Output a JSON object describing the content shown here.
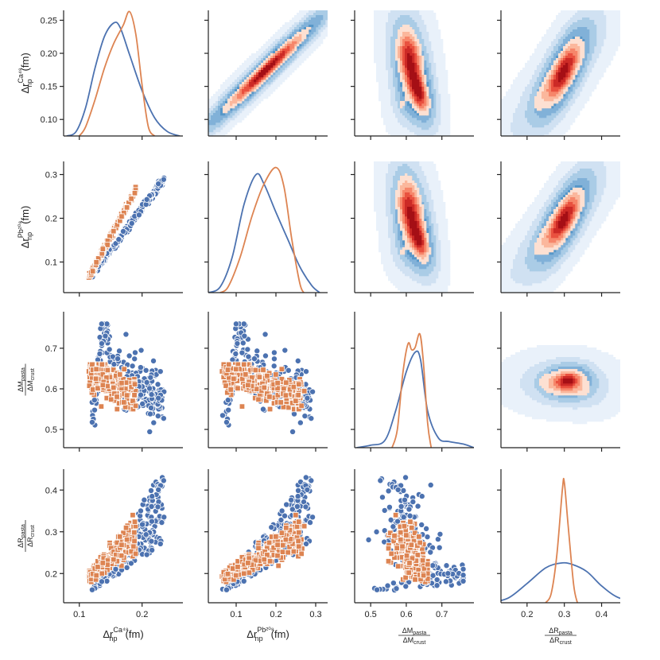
{
  "chart_data": {
    "type": "pairplot",
    "variables": [
      {
        "key": "dr_ca48",
        "label_main": "Δr",
        "label_sub": "np",
        "label_sup": "Ca⁴⁸",
        "unit": "(fm)",
        "ticks": [
          0.1,
          0.15,
          0.2,
          0.25
        ],
        "tick_labels": [
          "0.10",
          "0.15",
          "0.20",
          "0.25"
        ],
        "bottom_ticks": [
          0.1,
          0.2
        ],
        "bottom_tick_labels": [
          "0.1",
          "0.2"
        ],
        "range": [
          0.075,
          0.265
        ]
      },
      {
        "key": "dr_pb208",
        "label_main": "Δr",
        "label_sub": "np",
        "label_sup": "Pb²⁰⁸",
        "unit": "(fm)",
        "ticks": [
          0.1,
          0.2,
          0.3
        ],
        "tick_labels": [
          "0.1",
          "0.2",
          "0.3"
        ],
        "bottom_ticks": [
          0.1,
          0.2,
          0.3
        ],
        "bottom_tick_labels": [
          "0.1",
          "0.2",
          "0.3"
        ],
        "range": [
          0.03,
          0.33
        ]
      },
      {
        "key": "dm_ratio",
        "label_num": "ΔM",
        "label_num_sub": "pasta",
        "label_den": "ΔM",
        "label_den_sub": "crust",
        "ticks": [
          0.5,
          0.6,
          0.7
        ],
        "tick_labels": [
          "0.5",
          "0.6",
          "0.7"
        ],
        "bottom_ticks": [
          0.5,
          0.6,
          0.7
        ],
        "bottom_tick_labels": [
          "0.5",
          "0.6",
          "0.7"
        ],
        "range": [
          0.455,
          0.79
        ]
      },
      {
        "key": "dr_ratio",
        "label_num": "ΔR",
        "label_num_sub": "pasta",
        "label_den": "ΔR",
        "label_den_sub": "crust",
        "ticks": [
          0.2,
          0.3,
          0.4
        ],
        "tick_labels": [
          "0.2",
          "0.3",
          "0.4"
        ],
        "bottom_ticks": [
          0.2,
          0.3,
          0.4
        ],
        "bottom_tick_labels": [
          "0.2",
          "0.3",
          "0.4"
        ],
        "range": [
          0.13,
          0.45
        ]
      }
    ],
    "series": [
      {
        "marker": "circle",
        "color": "#4c72b0"
      },
      {
        "marker": "square",
        "color": "#dd8452"
      }
    ],
    "diagonal_kde": [
      {
        "var": "dr_ca48",
        "ylim": [
          0,
          1
        ],
        "blue": [
          [
            0.08,
            0.0
          ],
          [
            0.095,
            0.04
          ],
          [
            0.11,
            0.25
          ],
          [
            0.125,
            0.6
          ],
          [
            0.14,
            0.88
          ],
          [
            0.155,
            1.0
          ],
          [
            0.165,
            0.96
          ],
          [
            0.18,
            0.72
          ],
          [
            0.2,
            0.4
          ],
          [
            0.22,
            0.16
          ],
          [
            0.24,
            0.04
          ],
          [
            0.26,
            0.0
          ]
        ],
        "orange": [
          [
            0.1,
            0.0
          ],
          [
            0.11,
            0.08
          ],
          [
            0.125,
            0.32
          ],
          [
            0.14,
            0.6
          ],
          [
            0.155,
            0.82
          ],
          [
            0.17,
            0.98
          ],
          [
            0.18,
            1.1
          ],
          [
            0.19,
            0.9
          ],
          [
            0.2,
            0.45
          ],
          [
            0.21,
            0.08
          ],
          [
            0.22,
            0.0
          ]
        ]
      },
      {
        "var": "dr_pb208",
        "ylim": [
          0,
          1
        ],
        "blue": [
          [
            0.03,
            0.0
          ],
          [
            0.06,
            0.05
          ],
          [
            0.09,
            0.3
          ],
          [
            0.12,
            0.75
          ],
          [
            0.15,
            1.0
          ],
          [
            0.17,
            0.92
          ],
          [
            0.2,
            0.68
          ],
          [
            0.23,
            0.45
          ],
          [
            0.26,
            0.22
          ],
          [
            0.29,
            0.06
          ],
          [
            0.31,
            0.0
          ]
        ],
        "orange": [
          [
            0.06,
            0.0
          ],
          [
            0.08,
            0.05
          ],
          [
            0.11,
            0.3
          ],
          [
            0.14,
            0.65
          ],
          [
            0.17,
            0.92
          ],
          [
            0.2,
            1.06
          ],
          [
            0.22,
            0.9
          ],
          [
            0.24,
            0.45
          ],
          [
            0.26,
            0.08
          ],
          [
            0.27,
            0.0
          ]
        ]
      },
      {
        "var": "dm_ratio",
        "ylim": [
          0,
          1
        ],
        "blue": [
          [
            0.46,
            0.0
          ],
          [
            0.5,
            0.02
          ],
          [
            0.54,
            0.06
          ],
          [
            0.57,
            0.3
          ],
          [
            0.6,
            0.62
          ],
          [
            0.625,
            0.78
          ],
          [
            0.64,
            0.72
          ],
          [
            0.66,
            0.3
          ],
          [
            0.69,
            0.08
          ],
          [
            0.72,
            0.05
          ],
          [
            0.76,
            0.03
          ],
          [
            0.79,
            0.0
          ]
        ],
        "orange": [
          [
            0.56,
            0.0
          ],
          [
            0.575,
            0.15
          ],
          [
            0.59,
            0.6
          ],
          [
            0.605,
            0.85
          ],
          [
            0.615,
            0.8
          ],
          [
            0.625,
            0.82
          ],
          [
            0.638,
            0.93
          ],
          [
            0.648,
            0.7
          ],
          [
            0.66,
            0.2
          ],
          [
            0.67,
            0.0
          ]
        ]
      },
      {
        "var": "dr_ratio",
        "ylim": [
          0,
          1
        ],
        "blue": [
          [
            0.1,
            0.0
          ],
          [
            0.15,
            0.04
          ],
          [
            0.2,
            0.16
          ],
          [
            0.25,
            0.29
          ],
          [
            0.29,
            0.33
          ],
          [
            0.32,
            0.32
          ],
          [
            0.36,
            0.26
          ],
          [
            0.4,
            0.14
          ],
          [
            0.44,
            0.05
          ],
          [
            0.49,
            0.0
          ]
        ],
        "orange": [
          [
            0.25,
            0.0
          ],
          [
            0.265,
            0.08
          ],
          [
            0.28,
            0.4
          ],
          [
            0.295,
            0.95
          ],
          [
            0.3,
            1.0
          ],
          [
            0.31,
            0.65
          ],
          [
            0.325,
            0.15
          ],
          [
            0.335,
            0.0
          ]
        ]
      }
    ],
    "upper_kde": [
      {
        "row": 0,
        "col": 1,
        "kind": "ridge",
        "comps": [
          {
            "cx": 0.175,
            "cy": 0.175,
            "sx": 0.06,
            "sy": 0.035,
            "rho": 0.97,
            "w": 1.0
          }
        ]
      },
      {
        "row": 0,
        "col": 2,
        "kind": "blob",
        "comps": [
          {
            "cx": 0.61,
            "cy": 0.19,
            "sx": 0.022,
            "sy": 0.03,
            "rho": -0.3,
            "w": 1.0
          },
          {
            "cx": 0.635,
            "cy": 0.14,
            "sx": 0.018,
            "sy": 0.02,
            "rho": -0.5,
            "w": 0.9
          },
          {
            "cx": 0.585,
            "cy": 0.12,
            "sx": 0.015,
            "sy": 0.015,
            "rho": 0.0,
            "w": 0.2
          }
        ]
      },
      {
        "row": 0,
        "col": 3,
        "kind": "ridge",
        "comps": [
          {
            "cx": 0.28,
            "cy": 0.16,
            "sx": 0.05,
            "sy": 0.035,
            "rho": 0.85,
            "w": 0.6
          },
          {
            "cx": 0.3,
            "cy": 0.175,
            "sx": 0.025,
            "sy": 0.028,
            "rho": 0.7,
            "w": 1.0
          }
        ]
      },
      {
        "row": 1,
        "col": 2,
        "kind": "blob",
        "comps": [
          {
            "cx": 0.61,
            "cy": 0.22,
            "sx": 0.022,
            "sy": 0.045,
            "rho": -0.3,
            "w": 1.0
          },
          {
            "cx": 0.635,
            "cy": 0.15,
            "sx": 0.018,
            "sy": 0.03,
            "rho": -0.5,
            "w": 0.9
          },
          {
            "cx": 0.585,
            "cy": 0.12,
            "sx": 0.015,
            "sy": 0.02,
            "rho": 0.0,
            "w": 0.2
          }
        ]
      },
      {
        "row": 1,
        "col": 3,
        "kind": "ridge",
        "comps": [
          {
            "cx": 0.28,
            "cy": 0.18,
            "sx": 0.05,
            "sy": 0.05,
            "rho": 0.85,
            "w": 0.6
          },
          {
            "cx": 0.3,
            "cy": 0.2,
            "sx": 0.025,
            "sy": 0.04,
            "rho": 0.7,
            "w": 1.0
          }
        ]
      },
      {
        "row": 2,
        "col": 3,
        "kind": "blob",
        "comps": [
          {
            "cx": 0.29,
            "cy": 0.615,
            "sx": 0.045,
            "sy": 0.022,
            "rho": 0.0,
            "w": 0.7
          },
          {
            "cx": 0.31,
            "cy": 0.622,
            "sx": 0.02,
            "sy": 0.013,
            "rho": 0.2,
            "w": 1.0
          },
          {
            "cx": 0.34,
            "cy": 0.6,
            "sx": 0.03,
            "sy": 0.02,
            "rho": -0.3,
            "w": 0.3
          }
        ]
      }
    ]
  }
}
